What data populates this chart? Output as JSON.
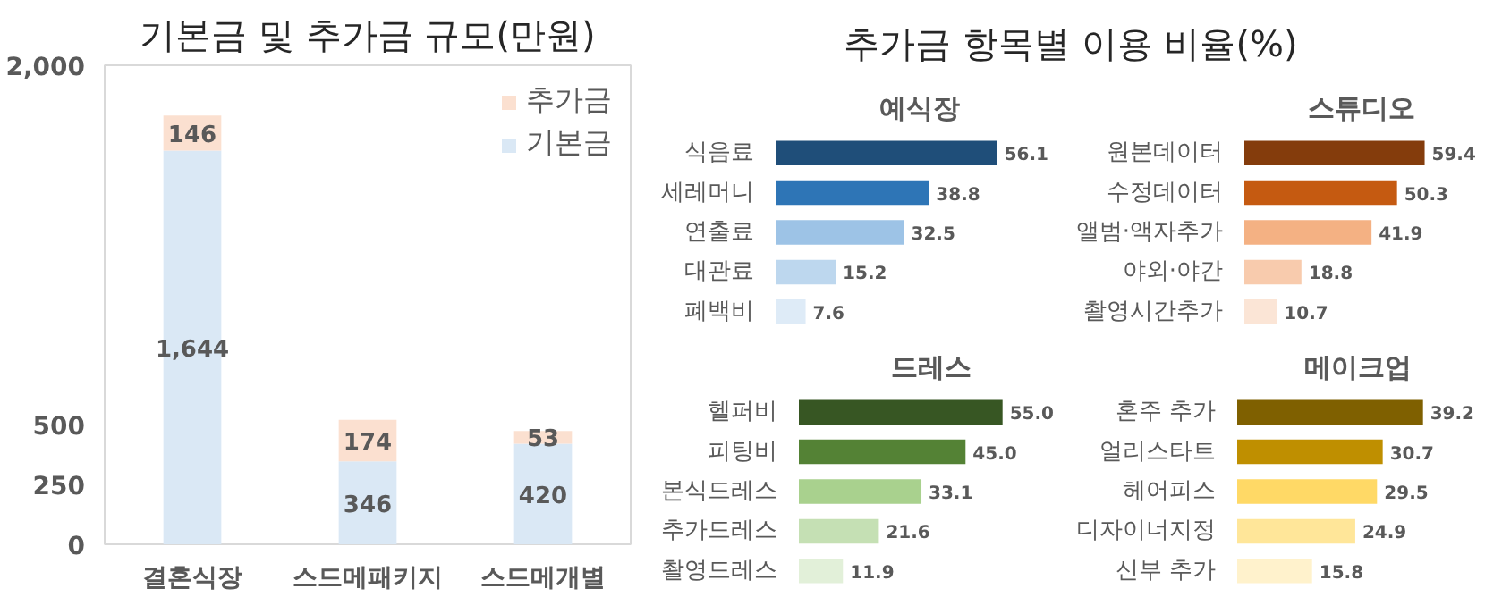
{
  "chart_data": [
    {
      "type": "bar",
      "title": "기본금 및 추가금 규모(만원)",
      "categories": [
        "결혼식장",
        "스드메패키지",
        "스드메개별"
      ],
      "stacked": true,
      "legend": "top right",
      "grid": false,
      "ylim": [
        0,
        2000
      ],
      "yticks": [
        0,
        250,
        500,
        {
          "value": 2000,
          "label": "2,000"
        }
      ],
      "series": [
        {
          "name": "기본금",
          "color": "#dae8f5",
          "values": [
            1644,
            346,
            420
          ],
          "value_labels": [
            "1,644",
            "346",
            "420"
          ]
        },
        {
          "name": "추가금",
          "color": "#fbe0d0",
          "values": [
            146,
            174,
            53
          ],
          "value_labels": [
            "146",
            "174",
            "53"
          ]
        }
      ]
    },
    {
      "type": "bar",
      "orientation": "horizontal",
      "title": "추가금 항목별 이용 비율(%)",
      "subtitle": "예식장",
      "categories": [
        "식음료",
        "세레머니",
        "연출료",
        "대관료",
        "폐백비"
      ],
      "values": [
        56.1,
        38.8,
        32.5,
        15.2,
        7.6
      ],
      "value_labels": [
        "56.1",
        "38.8",
        "32.5",
        "15.2",
        "7.6"
      ],
      "colors": [
        "#1f4e79",
        "#2e75b6",
        "#9dc3e6",
        "#bdd7ee",
        "#deebf7"
      ],
      "tick_labels": "y",
      "grid": false
    },
    {
      "type": "bar",
      "orientation": "horizontal",
      "subtitle": "스튜디오",
      "categories": [
        "원본데이터",
        "수정데이터",
        "앨범·액자추가",
        "야외·야간",
        "촬영시간추가"
      ],
      "values": [
        59.4,
        50.3,
        41.9,
        18.8,
        10.7
      ],
      "value_labels": [
        "59.4",
        "50.3",
        "41.9",
        "18.8",
        "10.7"
      ],
      "colors": [
        "#843c0c",
        "#c55a11",
        "#f4b183",
        "#f8cbad",
        "#fbe5d6"
      ],
      "tick_labels": "y",
      "grid": false
    },
    {
      "type": "bar",
      "orientation": "horizontal",
      "subtitle": "드레스",
      "categories": [
        "헬퍼비",
        "피팅비",
        "본식드레스",
        "추가드레스",
        "촬영드레스"
      ],
      "values": [
        55.0,
        45.0,
        33.1,
        21.6,
        11.9
      ],
      "value_labels": [
        "55.0",
        "45.0",
        "33.1",
        "21.6",
        "11.9"
      ],
      "colors": [
        "#375623",
        "#548235",
        "#a9d18e",
        "#c5e0b4",
        "#e2f0d9"
      ],
      "tick_labels": "y",
      "grid": false
    },
    {
      "type": "bar",
      "orientation": "horizontal",
      "subtitle": "메이크업",
      "categories": [
        "혼주 추가",
        "얼리스타트",
        "헤어피스",
        "디자이너지정",
        "신부 추가"
      ],
      "values": [
        39.2,
        30.7,
        29.5,
        24.9,
        15.8
      ],
      "value_labels": [
        "39.2",
        "30.7",
        "29.5",
        "24.9",
        "15.8"
      ],
      "colors": [
        "#7f6000",
        "#bf8f00",
        "#ffd966",
        "#ffe699",
        "#fff2cc"
      ],
      "tick_labels": "y",
      "grid": false
    }
  ]
}
